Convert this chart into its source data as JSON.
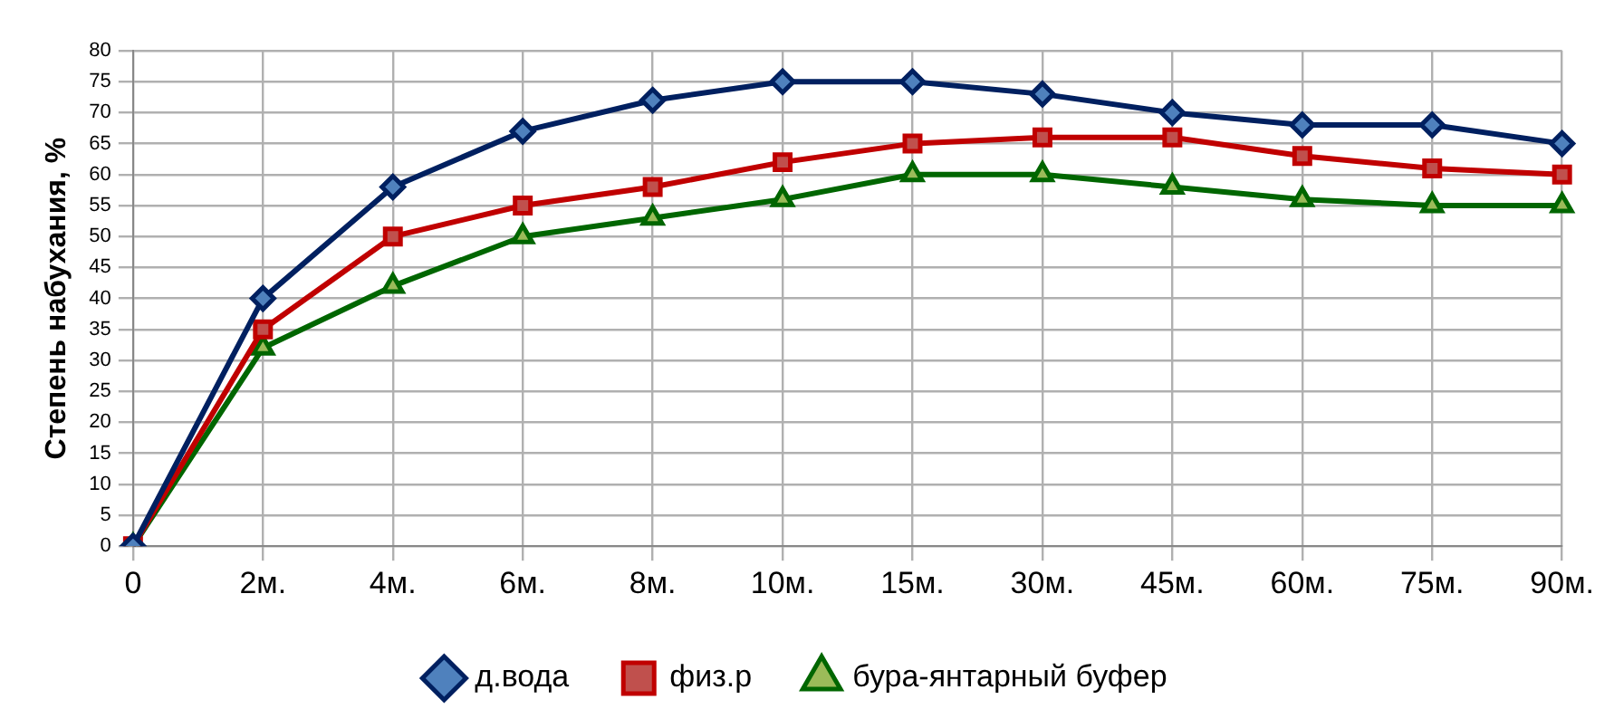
{
  "chart_data": {
    "type": "line",
    "ylabel": "Степень набухания, %",
    "categories": [
      "0",
      "2м.",
      "4м.",
      "6м.",
      "8м.",
      "10м.",
      "15м.",
      "30м.",
      "45м.",
      "60м.",
      "75м.",
      "90м."
    ],
    "series": [
      {
        "name": "д.вода",
        "color": "#002060",
        "marker": "diamond",
        "values": [
          0,
          40,
          58,
          67,
          72,
          75,
          75,
          73,
          70,
          68,
          68,
          65
        ]
      },
      {
        "name": "физ.р",
        "color": "#c00000",
        "marker": "square",
        "values": [
          0,
          35,
          50,
          55,
          58,
          62,
          65,
          66,
          66,
          63,
          61,
          60
        ]
      },
      {
        "name": "бура-янтарный буфер",
        "color": "#006600",
        "marker": "triangle",
        "values": [
          0,
          32,
          42,
          50,
          53,
          56,
          60,
          60,
          58,
          56,
          55,
          55
        ]
      }
    ],
    "ylim": [
      0,
      80
    ],
    "yticks": [
      0,
      5,
      10,
      15,
      20,
      25,
      30,
      35,
      40,
      45,
      50,
      55,
      60,
      65,
      70,
      75,
      80
    ],
    "grid": true,
    "legend": "bottom"
  }
}
